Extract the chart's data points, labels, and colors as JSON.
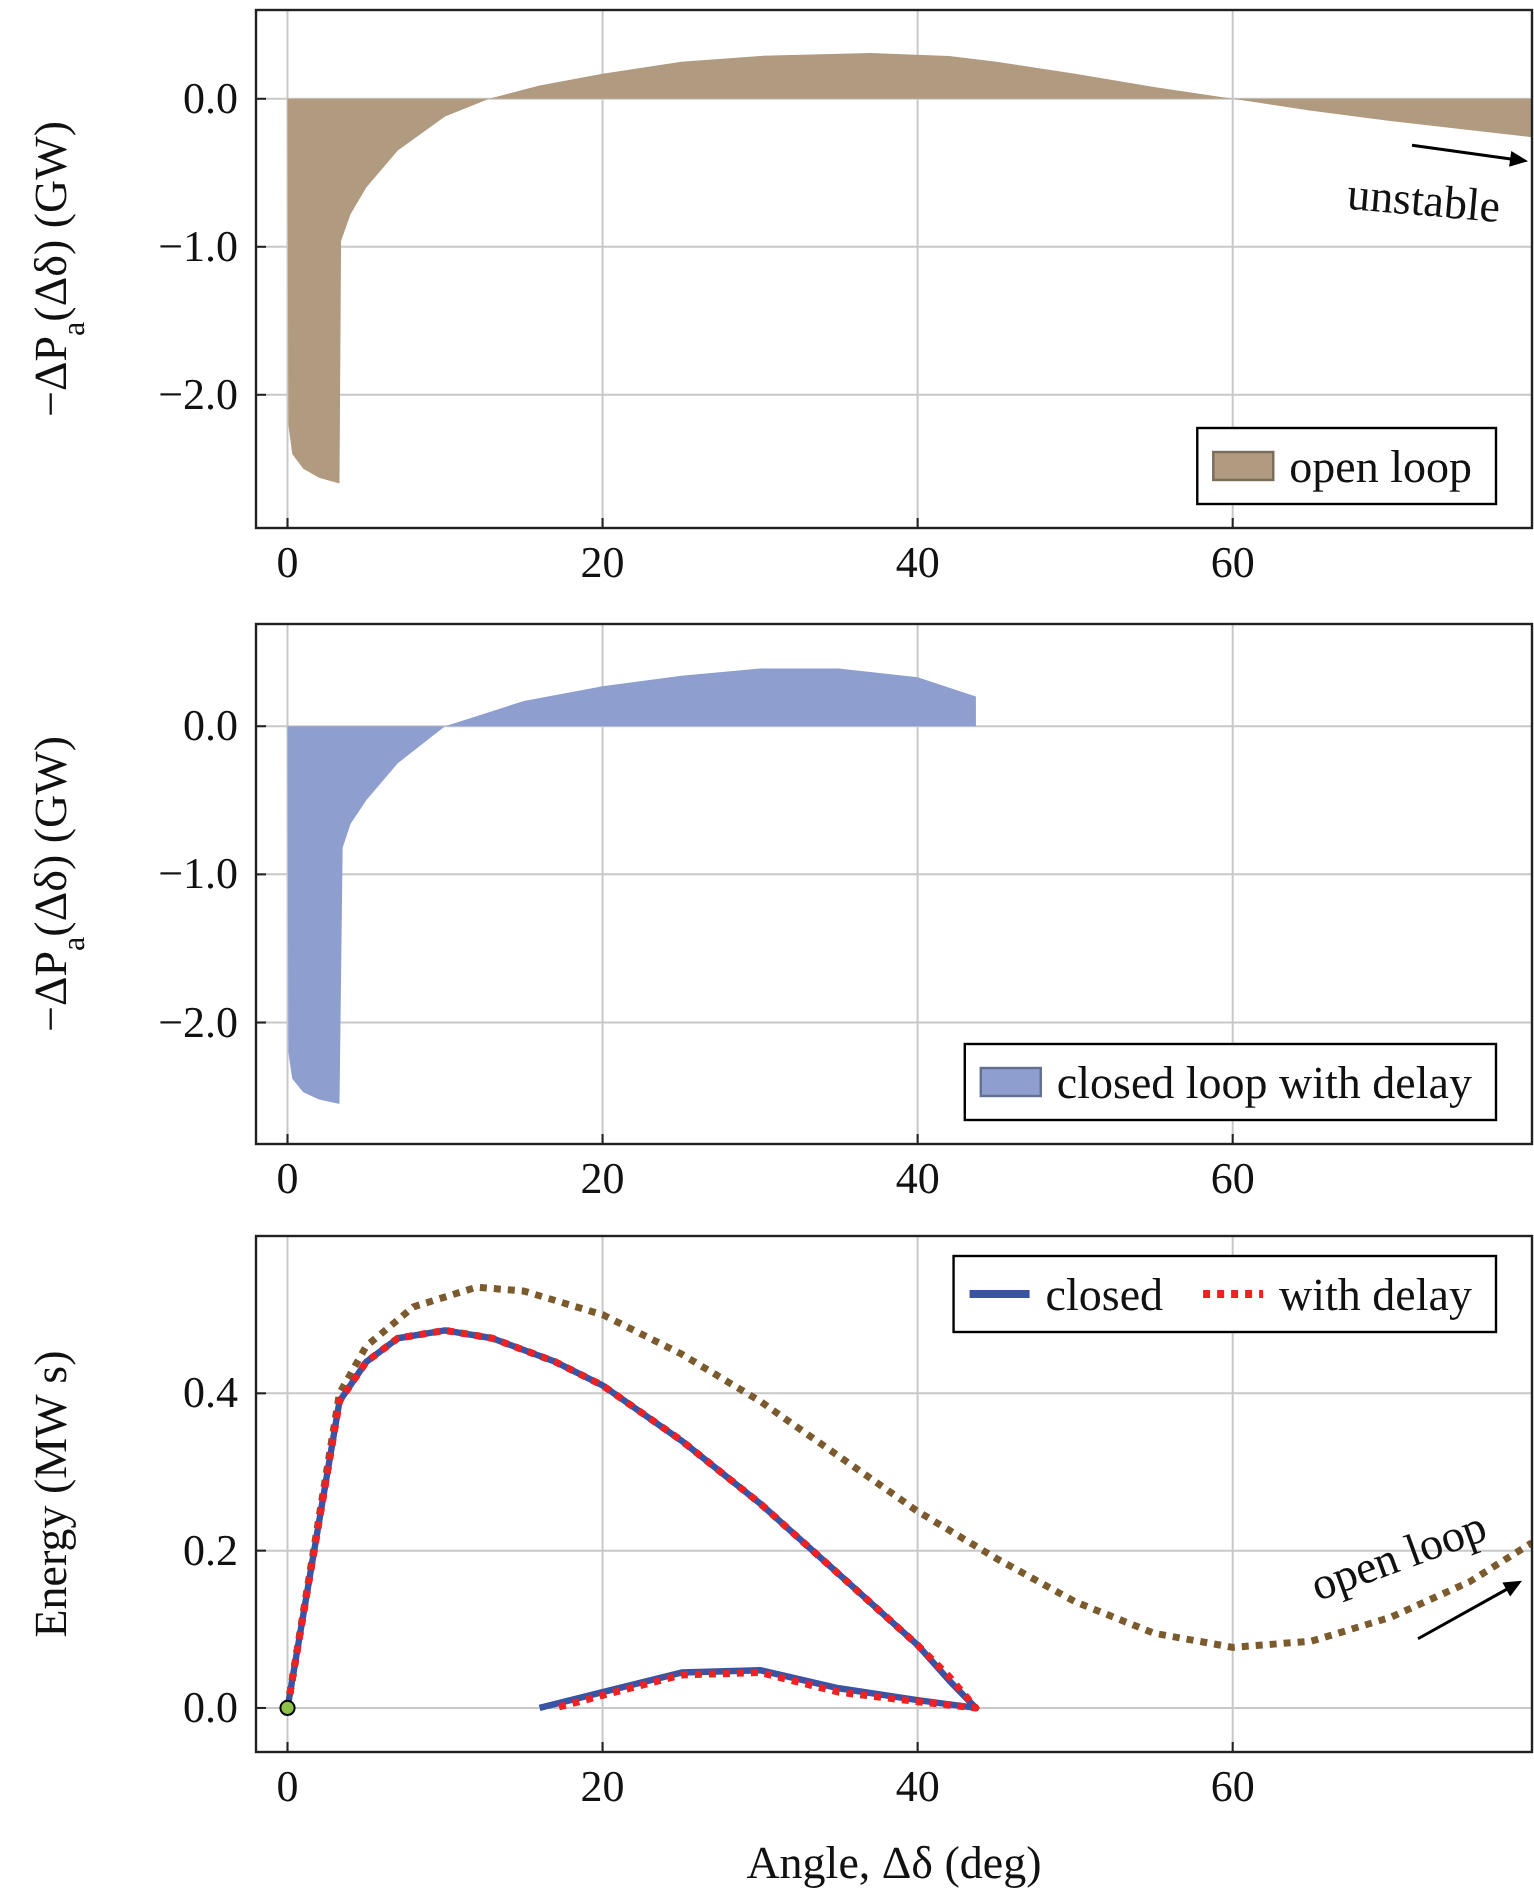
{
  "chart_data": [
    {
      "type": "area",
      "ylabel": "−ΔP$_{a}$(Δδ) (GW)",
      "xlim": [
        -2,
        79
      ],
      "ylim": [
        -2.9,
        0.6
      ],
      "xticks": [
        0,
        20,
        40,
        60
      ],
      "yticks": [
        {
          "value": 0,
          "label": "0.0"
        },
        {
          "value": -1,
          "label": "−1.0"
        },
        {
          "value": -2,
          "label": "−2.0"
        }
      ],
      "grid": true,
      "legend": "bottom right",
      "annotations": [
        "unstable"
      ],
      "series": [
        {
          "name": "open loop",
          "color": "#b09a80",
          "x": [
            0,
            0.05,
            0.3,
            1,
            2,
            3.3,
            3.4,
            4,
            5,
            7,
            10,
            12.8,
            16,
            20,
            25,
            30,
            37,
            42,
            45,
            50,
            55,
            60,
            65,
            70,
            75,
            79
          ],
          "values": [
            0,
            -2.2,
            -2.4,
            -2.5,
            -2.56,
            -2.6,
            -0.96,
            -0.78,
            -0.6,
            -0.35,
            -0.12,
            0,
            0.09,
            0.17,
            0.25,
            0.29,
            0.31,
            0.29,
            0.25,
            0.17,
            0.08,
            0,
            -0.08,
            -0.15,
            -0.21,
            -0.26
          ]
        }
      ]
    },
    {
      "type": "area",
      "ylabel": "−ΔP$_{a}$(Δδ) (GW)",
      "xlim": [
        -2,
        79
      ],
      "ylim": [
        -2.82,
        0.69
      ],
      "xticks": [
        0,
        20,
        40,
        60
      ],
      "yticks": [
        {
          "value": 0,
          "label": "0.0"
        },
        {
          "value": -1,
          "label": "−1.0"
        },
        {
          "value": -2,
          "label": "−2.0"
        }
      ],
      "grid": true,
      "legend": "bottom right",
      "series": [
        {
          "name": "closed loop with delay",
          "color": "#8e9fcf",
          "x": [
            0,
            0.05,
            0.3,
            1,
            2,
            3.3,
            3.5,
            4,
            5,
            7,
            10,
            15,
            20,
            25,
            30,
            35,
            40,
            43.7,
            43.7
          ],
          "values": [
            0,
            -2.2,
            -2.38,
            -2.47,
            -2.52,
            -2.55,
            -0.82,
            -0.66,
            -0.5,
            -0.25,
            0,
            0.17,
            0.27,
            0.34,
            0.39,
            0.39,
            0.33,
            0.2,
            0
          ]
        }
      ]
    },
    {
      "type": "line",
      "ylabel": "Energy (MW s)",
      "xlabel": "Angle, Δδ (deg)",
      "xlim": [
        -2,
        79
      ],
      "ylim": [
        -0.056,
        0.6
      ],
      "xticks": [
        0,
        20,
        40,
        60
      ],
      "yticks": [
        {
          "value": 0,
          "label": "0.0"
        },
        {
          "value": 0.2,
          "label": "0.2"
        },
        {
          "value": 0.4,
          "label": "0.4"
        }
      ],
      "grid": true,
      "legend": "top right",
      "annotations": [
        "open loop"
      ],
      "series": [
        {
          "color": "#7b5a2e",
          "line_style": "dotted",
          "x": [
            0,
            3.3,
            5,
            8,
            12,
            15,
            20,
            25,
            30,
            35,
            40,
            45,
            50,
            55,
            60,
            65,
            70,
            75,
            79
          ],
          "values": [
            0,
            0.4,
            0.46,
            0.51,
            0.535,
            0.53,
            0.5,
            0.45,
            0.39,
            0.32,
            0.25,
            0.19,
            0.135,
            0.095,
            0.077,
            0.085,
            0.115,
            0.16,
            0.21
          ]
        },
        {
          "name": "closed",
          "color": "#3a53a4",
          "line_style": "solid",
          "x": [
            0,
            3.3,
            5,
            7,
            10,
            13,
            17,
            20,
            25,
            30,
            35,
            40,
            42,
            43.7,
            40,
            35,
            30,
            25,
            20,
            16
          ],
          "values": [
            0,
            0.39,
            0.44,
            0.47,
            0.48,
            0.47,
            0.44,
            0.41,
            0.34,
            0.26,
            0.17,
            0.08,
            0.035,
            0,
            0.01,
            0.025,
            0.048,
            0.045,
            0.02,
            0
          ]
        },
        {
          "name": "with delay",
          "color": "#ee2222",
          "line_style": "dotted",
          "x": [
            0,
            3.3,
            5,
            7,
            10,
            13,
            17,
            20,
            25,
            30,
            35,
            40,
            42,
            43.7,
            40,
            35,
            30,
            25,
            20,
            17
          ],
          "values": [
            0,
            0.39,
            0.44,
            0.47,
            0.48,
            0.47,
            0.44,
            0.41,
            0.34,
            0.26,
            0.17,
            0.08,
            0.04,
            0,
            0.008,
            0.02,
            0.045,
            0.042,
            0.016,
            0
          ]
        },
        {
          "type": "scatter",
          "marker": "circle",
          "color": "#8bc34a",
          "x": [
            0
          ],
          "values": [
            0
          ]
        }
      ]
    }
  ]
}
